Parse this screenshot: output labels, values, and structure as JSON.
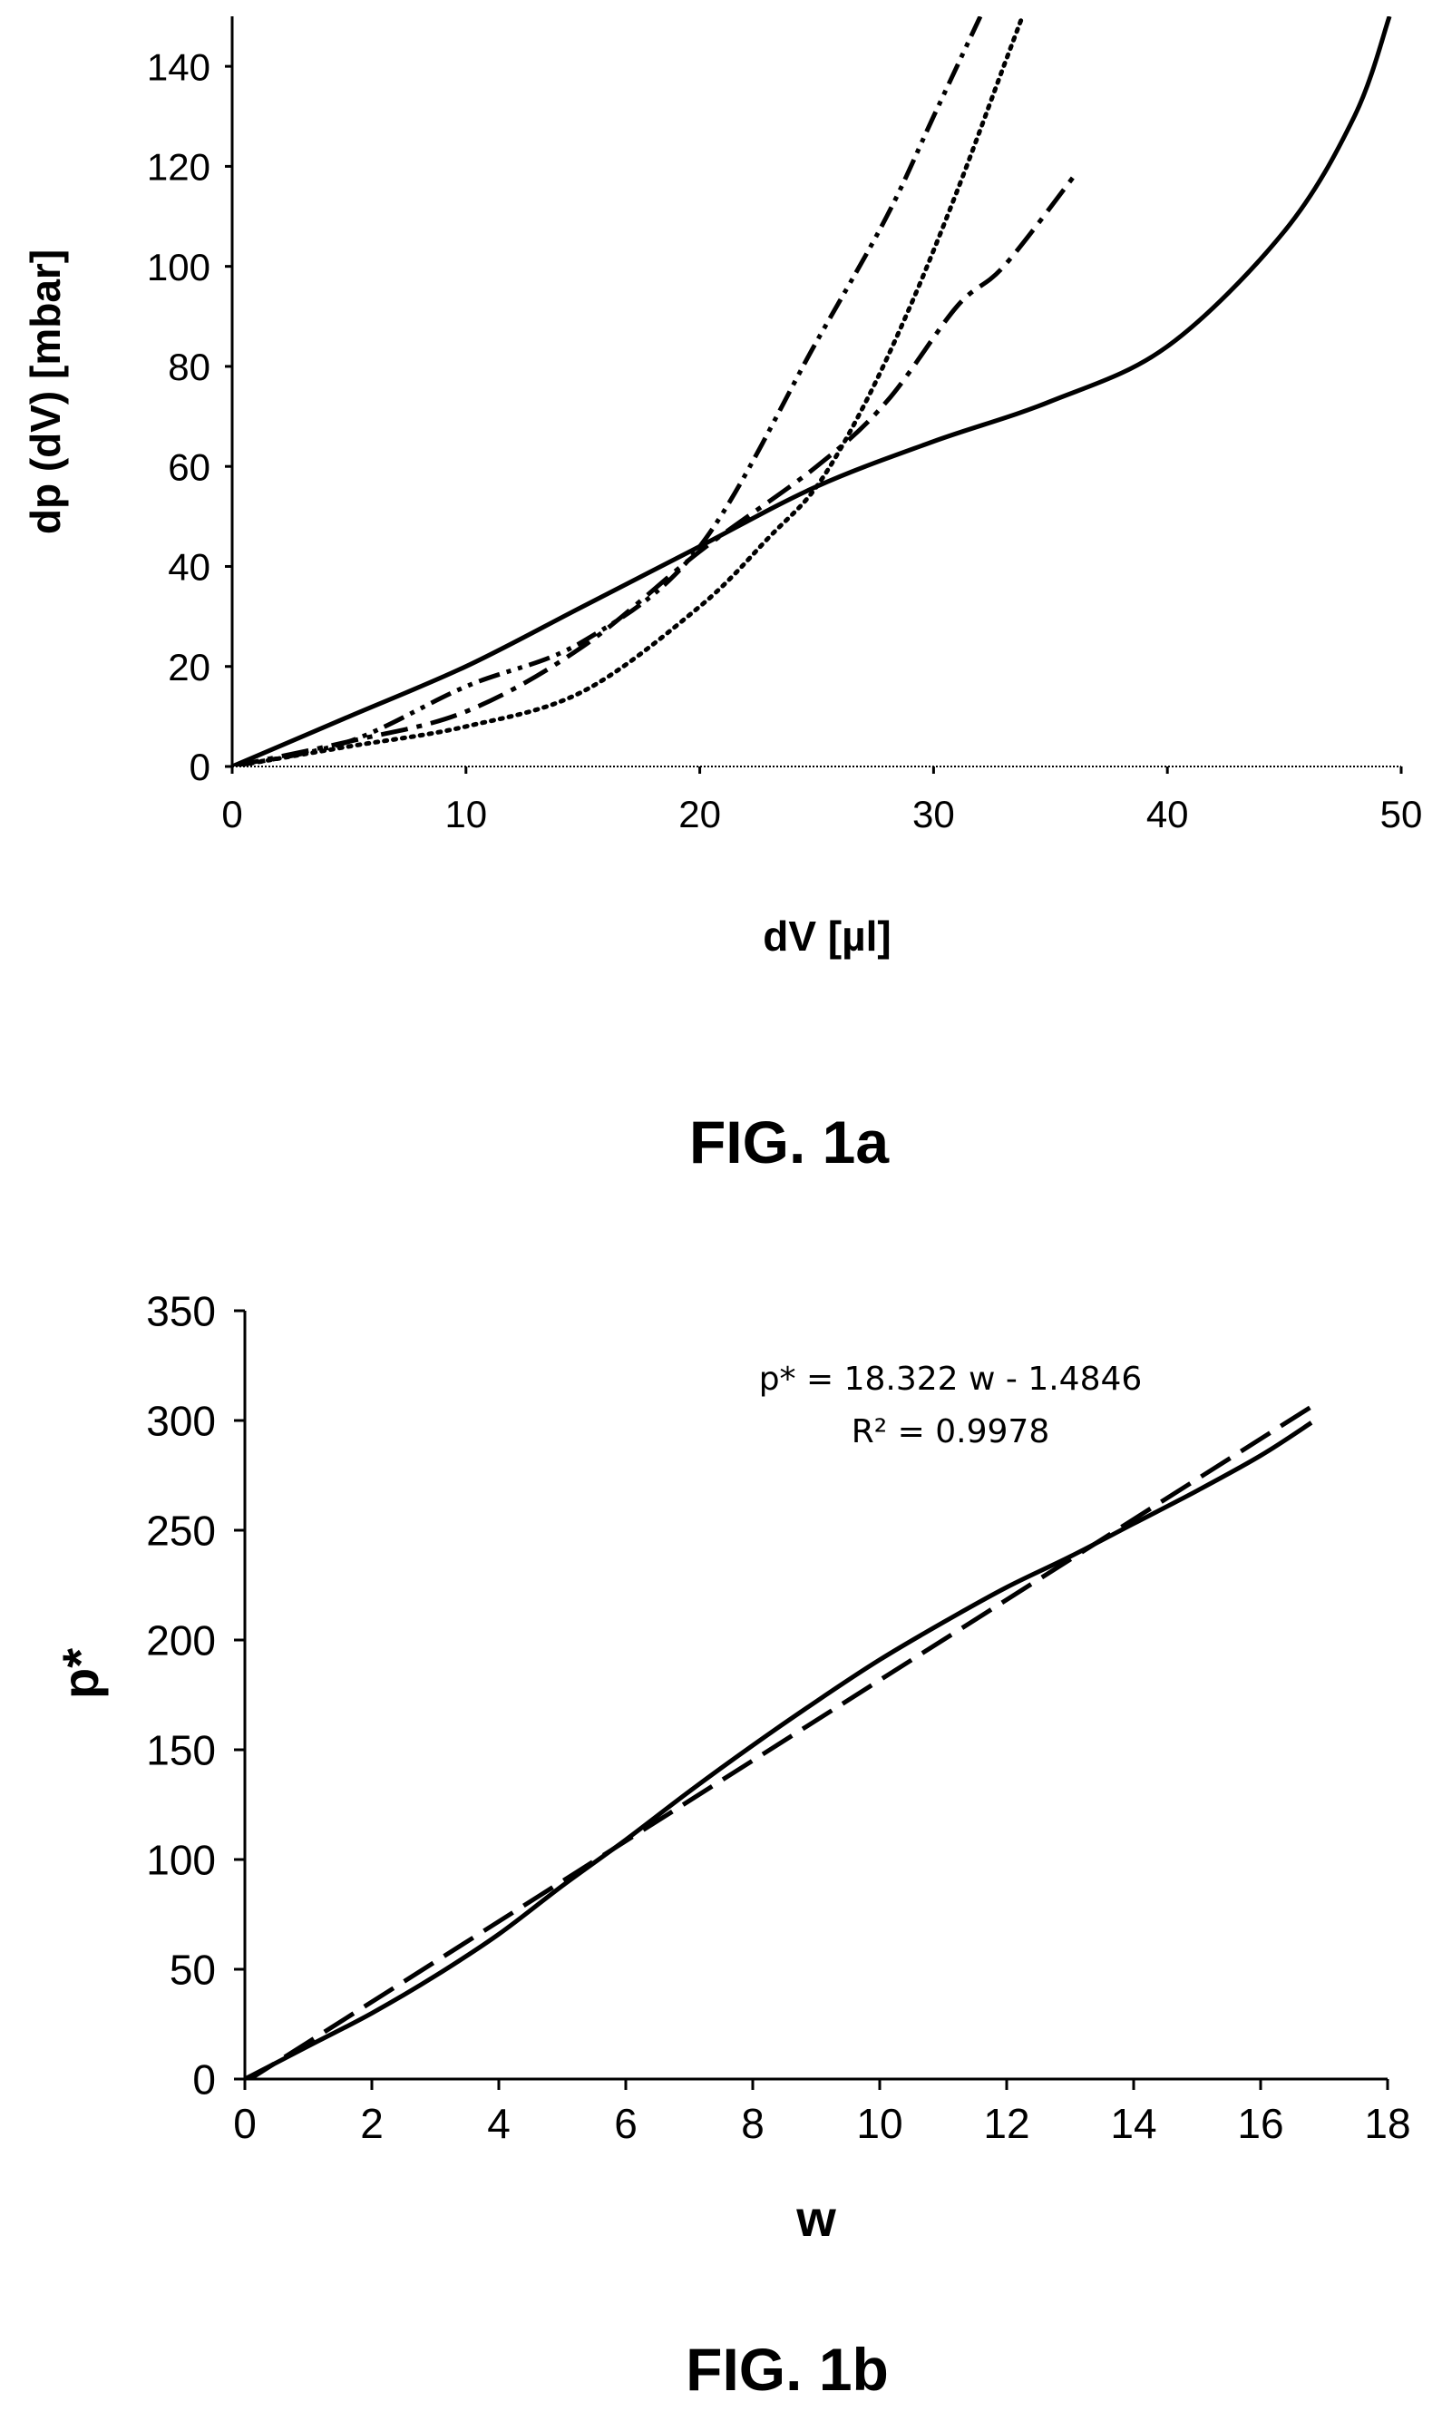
{
  "chart_data": [
    {
      "type": "line",
      "caption": "FIG. 1a",
      "xlabel": "dV [µl]",
      "ylabel": "dp (dV) [mbar]",
      "xlim": [
        0,
        50
      ],
      "ylim": [
        0,
        150
      ],
      "xticks": [
        "0",
        "10",
        "20",
        "30",
        "40",
        "50"
      ],
      "yticks": [
        "0",
        "20",
        "40",
        "60",
        "80",
        "100",
        "120",
        "140"
      ],
      "grid": false,
      "series": [
        {
          "style": "solid",
          "color": "#000000",
          "x": [
            0,
            5,
            10,
            15,
            20,
            25,
            30,
            35,
            40,
            45,
            48,
            49.5
          ],
          "y": [
            0,
            10,
            20,
            32,
            44,
            56,
            65,
            73,
            84,
            107,
            130,
            150
          ]
        },
        {
          "style": "dash-dot",
          "color": "#000000",
          "x": [
            0,
            5,
            10,
            15,
            20,
            25,
            28,
            31,
            33,
            36
          ],
          "y": [
            0,
            5,
            11,
            24,
            43,
            60,
            73,
            92,
            100,
            118
          ]
        },
        {
          "style": "dash-dot-dot",
          "color": "#000000",
          "x": [
            0,
            5,
            10,
            15,
            20,
            25,
            28,
            30,
            32
          ],
          "y": [
            0,
            5,
            16,
            25,
            44,
            85,
            110,
            130,
            150
          ]
        },
        {
          "style": "dotted",
          "color": "#000000",
          "x": [
            0,
            5,
            10,
            15,
            20,
            23,
            25,
            27,
            29,
            31,
            33,
            33.8
          ],
          "y": [
            0,
            4,
            8,
            15,
            32,
            46,
            56,
            72,
            92,
            115,
            140,
            150
          ]
        }
      ]
    },
    {
      "type": "line",
      "caption": "FIG. 1b",
      "xlabel": "w",
      "ylabel": "p*",
      "xlim": [
        0,
        18
      ],
      "ylim": [
        0,
        350
      ],
      "xticks": [
        "0",
        "2",
        "4",
        "6",
        "8",
        "10",
        "12",
        "14",
        "16",
        "18"
      ],
      "yticks": [
        "0",
        "50",
        "100",
        "150",
        "200",
        "250",
        "300",
        "350"
      ],
      "grid": false,
      "annotation": [
        "p* = 18.322 w - 1.4846",
        "R² = 0.9978"
      ],
      "series": [
        {
          "style": "solid",
          "color": "#000000",
          "x": [
            0,
            1,
            2,
            3,
            4,
            5,
            6,
            7,
            8,
            9,
            10,
            11,
            12,
            13,
            14,
            15,
            16,
            16.8
          ],
          "y": [
            0,
            15,
            30,
            47,
            66,
            88,
            109,
            131,
            152,
            172,
            191,
            208,
            224,
            238,
            253,
            268,
            284,
            299
          ]
        },
        {
          "style": "dashed",
          "color": "#000000",
          "x": [
            0,
            16.8
          ],
          "y": [
            -1.4846,
            306.3
          ]
        }
      ]
    }
  ]
}
